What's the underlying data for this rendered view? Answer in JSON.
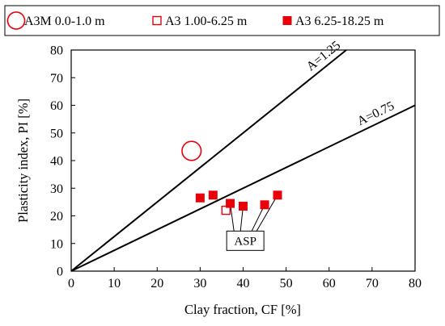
{
  "chart_data": {
    "type": "scatter",
    "xlabel": "Clay fraction, CF [%]",
    "ylabel": "Plasticity index, PI [%]",
    "xlim": [
      0,
      80
    ],
    "ylim": [
      0,
      80
    ],
    "xticks": [
      "0",
      "10",
      "20",
      "30",
      "40",
      "50",
      "60",
      "70",
      "80"
    ],
    "yticks": [
      "0",
      "10",
      "20",
      "30",
      "40",
      "50",
      "60",
      "70",
      "80"
    ],
    "grid": false,
    "legend_position": "top",
    "colors": {
      "marker": "#e8000b",
      "axis": "#000000"
    },
    "series": [
      {
        "name": "A3M 0.0-1.0 m",
        "marker": "open-circle",
        "points": [
          {
            "x": 28,
            "y": 43.5
          }
        ]
      },
      {
        "name": "A3 1.00-6.25 m",
        "marker": "open-square",
        "points": [
          {
            "x": 36,
            "y": 22
          }
        ]
      },
      {
        "name": "A3 6.25-18.25 m",
        "marker": "filled-square",
        "points": [
          {
            "x": 30,
            "y": 26.5
          },
          {
            "x": 33,
            "y": 27.5
          },
          {
            "x": 37,
            "y": 24.5
          },
          {
            "x": 40,
            "y": 23.5
          },
          {
            "x": 45,
            "y": 24
          },
          {
            "x": 48,
            "y": 27.5
          }
        ]
      }
    ],
    "reference_lines": [
      {
        "label": "A=1.25",
        "slope": 1.25
      },
      {
        "label": "A=0.75",
        "slope": 0.75
      }
    ],
    "annotation": {
      "text": "ASP",
      "targets": [
        {
          "x": 37,
          "y": 24.5
        },
        {
          "x": 40,
          "y": 23.5
        },
        {
          "x": 45,
          "y": 24
        },
        {
          "x": 48,
          "y": 27.5
        }
      ]
    }
  }
}
